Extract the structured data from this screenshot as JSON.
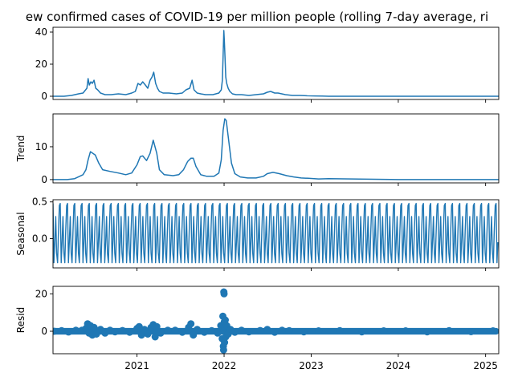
{
  "chart_data": {
    "type": "line",
    "title": "ew confirmed cases of COVID-19 per million people (rolling 7-day average, ri",
    "x_type": "date",
    "xlim": [
      "2020-01-15",
      "2025-02-25"
    ],
    "x_ticks": [
      "2021-01-01",
      "2022-01-01",
      "2023-01-01",
      "2024-01-01",
      "2025-01-01"
    ],
    "x_tick_labels": [
      "2021",
      "2022",
      "2023",
      "2024",
      "2025"
    ],
    "color": "#1f77b4",
    "grid": false,
    "legend": "none",
    "panels": [
      {
        "id": "observed",
        "ylabel": "",
        "ylim": [
          -2,
          43
        ],
        "y_ticks": [
          0,
          20,
          40
        ],
        "kind": "line",
        "series": [
          {
            "x": [
              "2020-01-15",
              "2020-03-01",
              "2020-04-01",
              "2020-05-01",
              "2020-05-20",
              "2020-06-05",
              "2020-06-10",
              "2020-06-15",
              "2020-06-22",
              "2020-06-28",
              "2020-07-05",
              "2020-07-12",
              "2020-07-20",
              "2020-08-01",
              "2020-08-20",
              "2020-09-15",
              "2020-10-15",
              "2020-11-15",
              "2020-12-10",
              "2020-12-25",
              "2021-01-05",
              "2021-01-15",
              "2021-01-25",
              "2021-02-05",
              "2021-02-15",
              "2021-02-25",
              "2021-03-05",
              "2021-03-12",
              "2021-03-20",
              "2021-03-28",
              "2021-04-05",
              "2021-04-20",
              "2021-05-15",
              "2021-06-15",
              "2021-07-10",
              "2021-07-25",
              "2021-08-10",
              "2021-08-20",
              "2021-08-28",
              "2021-09-10",
              "2021-09-25",
              "2021-10-15",
              "2021-11-15",
              "2021-12-10",
              "2021-12-20",
              "2021-12-25",
              "2021-12-28",
              "2021-12-31",
              "2022-01-02",
              "2022-01-05",
              "2022-01-08",
              "2022-01-12",
              "2022-01-18",
              "2022-01-25",
              "2022-02-05",
              "2022-02-20",
              "2022-03-15",
              "2022-04-15",
              "2022-05-15",
              "2022-06-15",
              "2022-07-01",
              "2022-07-15",
              "2022-08-01",
              "2022-08-15",
              "2022-09-15",
              "2022-10-15",
              "2022-11-15",
              "2022-12-15",
              "2023-01-15",
              "2023-02-15",
              "2023-03-15",
              "2023-06-01",
              "2024-01-01",
              "2024-06-01",
              "2025-02-25"
            ],
            "y": [
              0,
              0,
              0.5,
              1.5,
              2,
              5,
              11,
              7,
              9,
              8,
              10,
              5,
              4,
              2,
              1,
              1,
              1.5,
              1,
              2,
              3,
              8,
              7,
              9,
              7,
              5,
              10,
              12,
              15,
              8,
              5,
              3,
              2,
              2,
              1.5,
              2,
              4,
              5,
              10,
              4,
              2,
              1.5,
              1,
              1,
              2,
              4,
              10,
              25,
              41,
              35,
              24,
              12,
              8,
              5,
              3,
              1.5,
              1,
              1,
              0.5,
              1,
              1.5,
              2.5,
              3,
              2,
              2,
              1,
              0.5,
              0.5,
              0.3,
              0.2,
              0.1,
              0,
              0,
              0,
              0,
              0
            ]
          }
        ]
      },
      {
        "id": "trend",
        "ylabel": "Trend",
        "ylim": [
          -1,
          20
        ],
        "y_ticks": [
          0,
          10
        ],
        "kind": "line",
        "series": [
          {
            "x": [
              "2020-01-15",
              "2020-03-15",
              "2020-04-15",
              "2020-05-20",
              "2020-06-01",
              "2020-06-10",
              "2020-06-20",
              "2020-07-10",
              "2020-07-25",
              "2020-08-10",
              "2020-09-10",
              "2020-10-15",
              "2020-11-15",
              "2020-12-10",
              "2021-01-01",
              "2021-01-15",
              "2021-01-25",
              "2021-02-10",
              "2021-02-25",
              "2021-03-10",
              "2021-03-25",
              "2021-04-05",
              "2021-04-25",
              "2021-06-01",
              "2021-06-25",
              "2021-07-15",
              "2021-08-01",
              "2021-08-15",
              "2021-08-25",
              "2021-09-05",
              "2021-09-25",
              "2021-10-20",
              "2021-11-20",
              "2021-12-10",
              "2021-12-20",
              "2021-12-28",
              "2022-01-04",
              "2022-01-10",
              "2022-01-20",
              "2022-02-01",
              "2022-02-15",
              "2022-03-10",
              "2022-04-10",
              "2022-05-15",
              "2022-06-15",
              "2022-07-01",
              "2022-07-25",
              "2022-08-20",
              "2022-09-20",
              "2022-10-20",
              "2022-11-20",
              "2022-12-20",
              "2023-02-01",
              "2023-03-15",
              "2024-01-01",
              "2024-06-01",
              "2025-02-25"
            ],
            "y": [
              0,
              0,
              0.3,
              1.5,
              3,
              6,
              8.5,
              7.5,
              5,
              3,
              2.5,
              2,
              1.5,
              2,
              4.5,
              7,
              7.2,
              5.8,
              8,
              12,
              8,
              3,
              1.5,
              1.2,
              1.5,
              3,
              5.5,
              6.5,
              6.5,
              4,
              1.5,
              1,
              1,
              2,
              6,
              15,
              18.5,
              18,
              12,
              5,
              1.8,
              0.8,
              0.5,
              0.5,
              1,
              1.8,
              2.2,
              1.8,
              1.2,
              0.8,
              0.5,
              0.4,
              0.2,
              0.3,
              0,
              0,
              0
            ]
          }
        ]
      },
      {
        "id": "seasonal",
        "ylabel": "Seasonal",
        "ylim": [
          -0.4,
          0.53
        ],
        "y_ticks": [
          0.0,
          0.5
        ],
        "y_tick_labels": [
          "0.0",
          "0.5"
        ],
        "kind": "seasonal",
        "period_days": 30.44,
        "max": 0.48,
        "min": -0.33,
        "shape": [
          0.48,
          -0.33,
          -0.05,
          0.3,
          -0.2,
          -0.33,
          0.1,
          0.45
        ]
      },
      {
        "id": "resid",
        "ylabel": "Resid",
        "ylim": [
          -12,
          24
        ],
        "y_ticks": [
          0,
          20
        ],
        "kind": "scatter",
        "series": [
          {
            "x": [
              "2020-01-20",
              "2020-02-20",
              "2020-03-20",
              "2020-04-20",
              "2020-05-15",
              "2020-06-01",
              "2020-06-08",
              "2020-06-14",
              "2020-06-20",
              "2020-06-28",
              "2020-07-05",
              "2020-07-15",
              "2020-08-01",
              "2020-08-20",
              "2020-09-10",
              "2020-10-01",
              "2020-11-01",
              "2020-12-01",
              "2021-01-01",
              "2021-01-10",
              "2021-01-20",
              "2021-02-01",
              "2021-02-15",
              "2021-03-01",
              "2021-03-10",
              "2021-03-18",
              "2021-03-25",
              "2021-04-10",
              "2021-05-10",
              "2021-06-10",
              "2021-07-10",
              "2021-08-05",
              "2021-08-15",
              "2021-08-25",
              "2021-09-10",
              "2021-10-10",
              "2021-11-10",
              "2021-12-05",
              "2021-12-18",
              "2021-12-24",
              "2021-12-27",
              "2021-12-29",
              "2021-12-30",
              "2021-12-31",
              "2022-01-01",
              "2022-01-02",
              "2022-01-03",
              "2022-01-04",
              "2022-01-06",
              "2022-01-08",
              "2022-01-12",
              "2022-01-18",
              "2022-01-28",
              "2022-02-15",
              "2022-03-15",
              "2022-04-15",
              "2022-06-01",
              "2022-07-01",
              "2022-08-01",
              "2022-09-01",
              "2022-10-01",
              "2022-12-01",
              "2023-02-01",
              "2023-05-01",
              "2023-08-01",
              "2023-11-01",
              "2024-02-01",
              "2024-05-01",
              "2024-08-01",
              "2024-11-01",
              "2025-02-01"
            ],
            "y": [
              0,
              0.3,
              -0.4,
              0.5,
              0.5,
              1.5,
              4,
              -1,
              3,
              -2,
              2,
              -1.5,
              1,
              -1,
              0.5,
              -0.3,
              0.4,
              -0.5,
              1.5,
              2.5,
              -2,
              1,
              -1.5,
              2,
              3.5,
              -3,
              2.5,
              -1,
              0.5,
              0.5,
              -0.5,
              2,
              4,
              -2,
              1,
              -0.5,
              0.3,
              -1,
              3,
              -4,
              8,
              -8,
              -10,
              21,
              20,
              5,
              -6,
              2,
              6,
              -3,
              3,
              -1.5,
              1,
              -0.5,
              0.5,
              -0.3,
              0.4,
              1,
              -0.5,
              0.5,
              0.3,
              -0.3,
              0.2,
              0.3,
              -0.3,
              0.2,
              0.2,
              -0.3,
              0.3,
              -0.2,
              0.2
            ]
          }
        ]
      }
    ]
  }
}
